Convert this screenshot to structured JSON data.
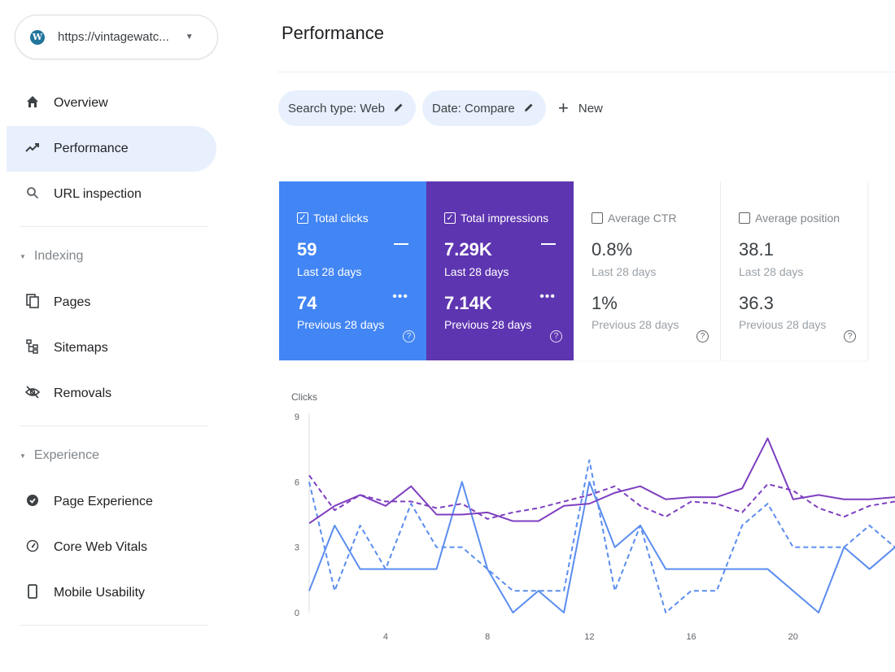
{
  "sidebar": {
    "property": {
      "url": "https://vintagewatc..."
    },
    "items": {
      "overview": "Overview",
      "performance": "Performance",
      "url_inspection": "URL inspection",
      "pages": "Pages",
      "sitemaps": "Sitemaps",
      "removals": "Removals",
      "page_experience": "Page Experience",
      "core_web_vitals": "Core Web Vitals",
      "mobile_usability": "Mobile Usability"
    },
    "sections": {
      "indexing": "Indexing",
      "experience": "Experience"
    },
    "active": "performance"
  },
  "header": {
    "title": "Performance"
  },
  "filters": {
    "search_type": "Search type: Web",
    "date": "Date: Compare",
    "new_label": "New"
  },
  "metrics": [
    {
      "label": "Total clicks",
      "checked": true,
      "color": "#4285f4",
      "current": "59",
      "current_period": "Last 28 days",
      "previous": "74",
      "previous_period": "Previous 28 days"
    },
    {
      "label": "Total impressions",
      "checked": true,
      "color": "#5e35b1",
      "current": "7.29K",
      "current_period": "Last 28 days",
      "previous": "7.14K",
      "previous_period": "Previous 28 days"
    },
    {
      "label": "Average CTR",
      "checked": false,
      "current": "0.8%",
      "current_period": "Last 28 days",
      "previous": "1%",
      "previous_period": "Previous 28 days"
    },
    {
      "label": "Average position",
      "checked": false,
      "current": "38.1",
      "current_period": "Last 28 days",
      "previous": "36.3",
      "previous_period": "Previous 28 days"
    }
  ],
  "chart_data": {
    "type": "line",
    "ylabel": "Clicks",
    "ylim": [
      0,
      9
    ],
    "yticks": [
      "0",
      "3",
      "6",
      "9"
    ],
    "xlim": [
      1,
      24
    ],
    "xticks": [
      "4",
      "8",
      "12",
      "16",
      "20"
    ],
    "grid": false,
    "x": [
      1,
      2,
      3,
      4,
      5,
      6,
      7,
      8,
      9,
      10,
      11,
      12,
      13,
      14,
      15,
      16,
      17,
      18,
      19,
      20,
      21,
      22,
      23,
      24
    ],
    "series": [
      {
        "metric": "clicks",
        "period": "last",
        "style": "solid",
        "color": "#5b8def",
        "values": [
          1,
          4,
          2,
          2,
          2,
          2,
          6,
          2,
          0,
          1,
          0,
          6,
          3,
          4,
          2,
          2,
          2,
          2,
          2,
          1,
          0,
          3,
          2,
          3
        ]
      },
      {
        "metric": "clicks",
        "period": "previous",
        "style": "dashed",
        "color": "#5b8def",
        "values": [
          6,
          1,
          4,
          2,
          5,
          3,
          3,
          2,
          1,
          1,
          1,
          7,
          1,
          4,
          0,
          1,
          1,
          4,
          5,
          3,
          3,
          3,
          4,
          3
        ]
      },
      {
        "metric": "impressions",
        "period": "last",
        "style": "solid",
        "color": "#7e3fbf",
        "values": [
          4.1,
          4.9,
          5.4,
          4.9,
          5.8,
          4.5,
          4.5,
          4.6,
          4.2,
          4.2,
          4.9,
          5.0,
          5.5,
          5.8,
          5.2,
          5.3,
          5.3,
          5.7,
          8.0,
          5.2,
          5.4,
          5.2,
          5.2,
          5.3
        ]
      },
      {
        "metric": "impressions",
        "period": "previous",
        "style": "dashed",
        "color": "#7e3fbf",
        "values": [
          6.3,
          4.7,
          5.4,
          5.1,
          5.1,
          4.8,
          5.0,
          4.3,
          4.6,
          4.8,
          5.1,
          5.4,
          5.8,
          4.9,
          4.4,
          5.1,
          5.0,
          4.6,
          5.9,
          5.6,
          4.8,
          4.4,
          4.9,
          5.1
        ]
      }
    ]
  }
}
